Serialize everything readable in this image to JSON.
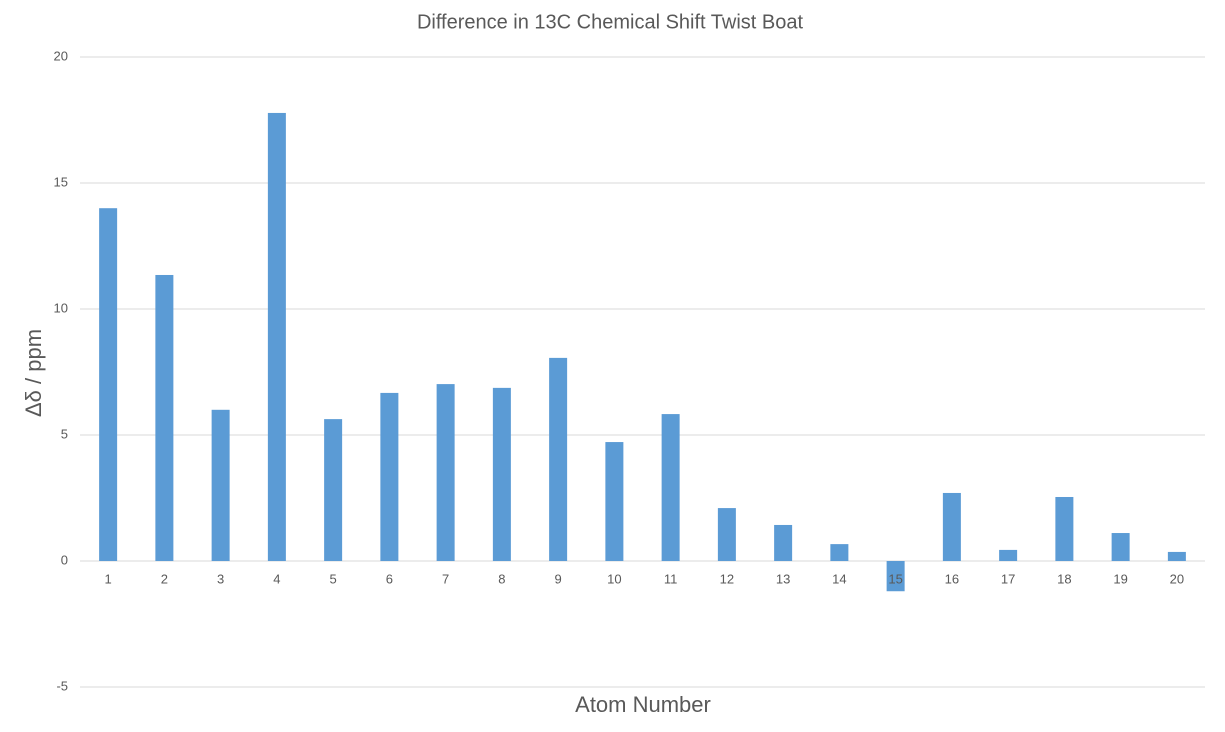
{
  "chart_data": {
    "type": "bar",
    "title": "Difference in 13C Chemical Shift Twist Boat",
    "x_label": "Atom Number",
    "y_label": "Δδ / ppm",
    "categories": [
      "1",
      "2",
      "3",
      "4",
      "5",
      "6",
      "7",
      "8",
      "9",
      "10",
      "11",
      "12",
      "13",
      "14",
      "15",
      "16",
      "17",
      "18",
      "19",
      "20"
    ],
    "values": [
      14.0,
      11.35,
      6.0,
      17.78,
      5.63,
      6.67,
      7.02,
      6.87,
      8.06,
      4.72,
      5.83,
      2.1,
      1.43,
      0.67,
      -1.2,
      2.7,
      0.44,
      2.54,
      1.11,
      0.36
    ],
    "color": "#5b9bd5",
    "ylim": [
      -5,
      20
    ],
    "yticks": [
      -5,
      0,
      5,
      10,
      15,
      20
    ],
    "grid": true
  }
}
